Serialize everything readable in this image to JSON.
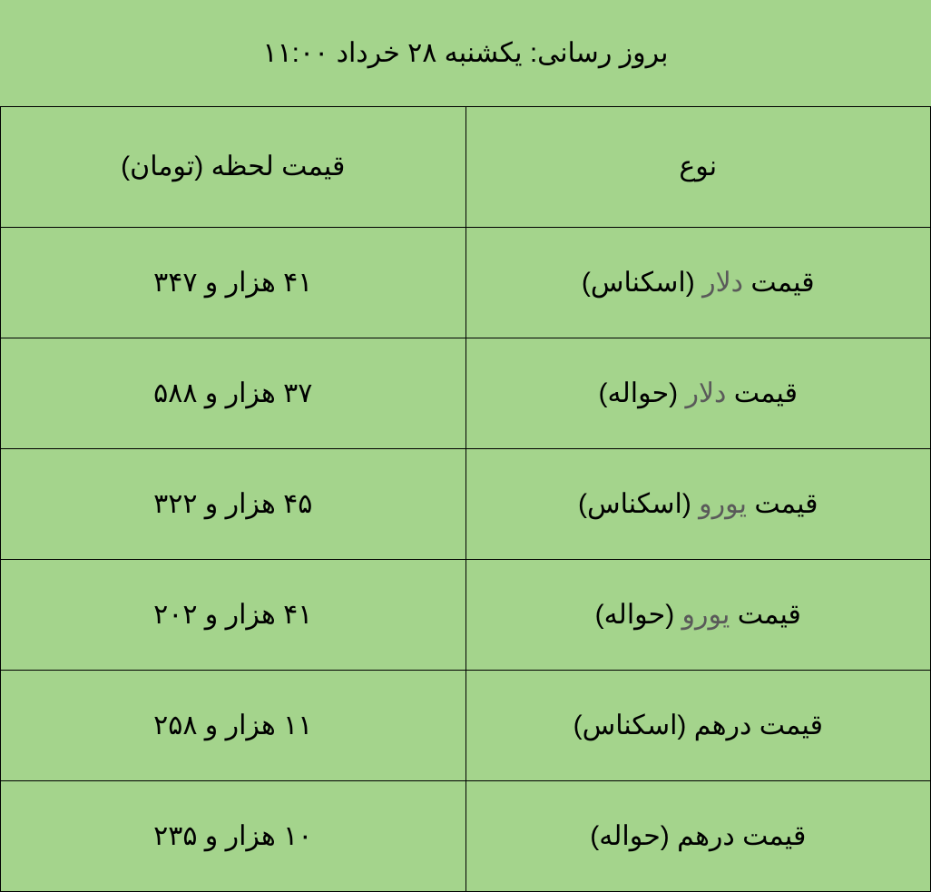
{
  "table": {
    "type": "table",
    "background_color": "#a4d48c",
    "border_color": "#000000",
    "title_color": "#000000",
    "header_color": "#000000",
    "label_prefix_color": "#000000",
    "currency_color": "#5a5a5a",
    "label_suffix_color": "#000000",
    "price_color": "#000000",
    "font_size": 30,
    "title": "بروز رسانی: یکشنبه ۲۸ خرداد ۱۱:۰۰",
    "columns": [
      "نوع",
      "قیمت لحظه (تومان)"
    ],
    "rows": [
      {
        "prefix": "قیمت ",
        "currency": "دلار",
        "suffix": " (اسکناس)",
        "price": "۴۱ هزار و ۳۴۷"
      },
      {
        "prefix": "قیمت ",
        "currency": "دلار",
        "suffix": " (حواله)",
        "price": "۳۷ هزار و ۵۸۸"
      },
      {
        "prefix": "قیمت ",
        "currency": "یورو",
        "suffix": " (اسکناس)",
        "price": "۴۵ هزار و ۳۲۲"
      },
      {
        "prefix": "قیمت ",
        "currency": "یورو",
        "suffix": " (حواله)",
        "price": "۴۱ هزار و ۲۰۲"
      },
      {
        "prefix": "قیمت درهم (اسکناس)",
        "currency": "",
        "suffix": "",
        "price": "۱۱ هزار و ۲۵۸"
      },
      {
        "prefix": "قیمت درهم (حواله)",
        "currency": "",
        "suffix": "",
        "price": "۱۰ هزار و ۲۳۵"
      }
    ]
  }
}
